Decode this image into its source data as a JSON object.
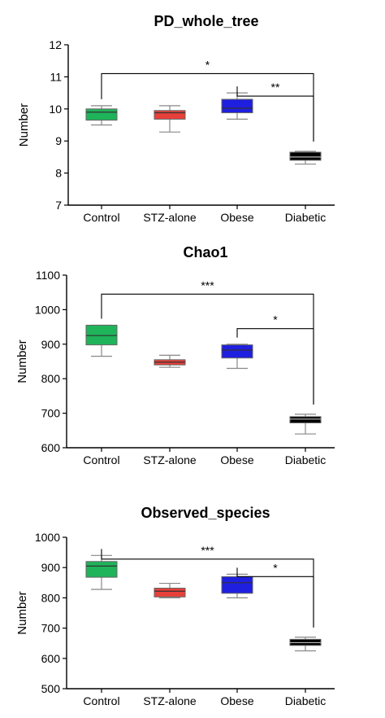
{
  "chart_data": [
    {
      "type": "box",
      "title": "PD_whole_tree",
      "ylabel": "Number",
      "ylim": [
        7,
        12
      ],
      "yticks": [
        7,
        8,
        9,
        10,
        11,
        12
      ],
      "categories": [
        "Control",
        "STZ-alone",
        "Obese",
        "Diabetic"
      ],
      "colors": [
        "#1fb35a",
        "#e8403a",
        "#1f1fe0",
        "#000000"
      ],
      "boxes": [
        {
          "min": 9.5,
          "q1": 9.65,
          "median": 9.9,
          "q3": 10.0,
          "max": 10.1
        },
        {
          "min": 9.28,
          "q1": 9.68,
          "median": 9.88,
          "q3": 9.95,
          "max": 10.1
        },
        {
          "min": 9.68,
          "q1": 9.88,
          "median": 10.02,
          "q3": 10.3,
          "max": 10.5
        },
        {
          "min": 8.28,
          "q1": 8.4,
          "median": 8.5,
          "q3": 8.65,
          "max": 8.68
        }
      ],
      "significance": [
        {
          "from": "Control",
          "to": "Diabetic",
          "label": "*",
          "level": 11.1
        },
        {
          "from": "Obese",
          "to": "Diabetic",
          "label": "**",
          "level": 10.4
        }
      ]
    },
    {
      "type": "box",
      "title": "Chao1",
      "ylabel": "Number",
      "ylim": [
        600,
        1100
      ],
      "yticks": [
        600,
        700,
        800,
        900,
        1000,
        1100
      ],
      "categories": [
        "Control",
        "STZ-alone",
        "Obese",
        "Diabetic"
      ],
      "colors": [
        "#1fb35a",
        "#e8403a",
        "#1f1fe0",
        "#000000"
      ],
      "boxes": [
        {
          "min": 865,
          "q1": 898,
          "median": 925,
          "q3": 955,
          "max": 955
        },
        {
          "min": 833,
          "q1": 840,
          "median": 848,
          "q3": 855,
          "max": 868
        },
        {
          "min": 830,
          "q1": 860,
          "median": 883,
          "q3": 898,
          "max": 900
        },
        {
          "min": 640,
          "q1": 672,
          "median": 683,
          "q3": 690,
          "max": 697
        }
      ],
      "significance": [
        {
          "from": "Control",
          "to": "Diabetic",
          "label": "***",
          "level": 1045
        },
        {
          "from": "Obese",
          "to": "Diabetic",
          "label": "*",
          "level": 945
        }
      ]
    },
    {
      "type": "box",
      "title": "Observed_species",
      "ylabel": "Number",
      "ylim": [
        500,
        1000
      ],
      "yticks": [
        500,
        600,
        700,
        800,
        900,
        1000
      ],
      "categories": [
        "Control",
        "STZ-alone",
        "Obese",
        "Diabetic"
      ],
      "colors": [
        "#1fb35a",
        "#e8403a",
        "#1f1fe0",
        "#000000"
      ],
      "boxes": [
        {
          "min": 828,
          "q1": 868,
          "median": 905,
          "q3": 920,
          "max": 940
        },
        {
          "min": 800,
          "q1": 803,
          "median": 822,
          "q3": 832,
          "max": 848
        },
        {
          "min": 800,
          "q1": 815,
          "median": 850,
          "q3": 870,
          "max": 878
        },
        {
          "min": 625,
          "q1": 643,
          "median": 652,
          "q3": 663,
          "max": 670
        }
      ],
      "significance": [
        {
          "from": "Control",
          "to": "Diabetic",
          "label": "***",
          "level": 928
        },
        {
          "from": "Obese",
          "to": "Diabetic",
          "label": "*",
          "level": 870
        }
      ]
    }
  ]
}
